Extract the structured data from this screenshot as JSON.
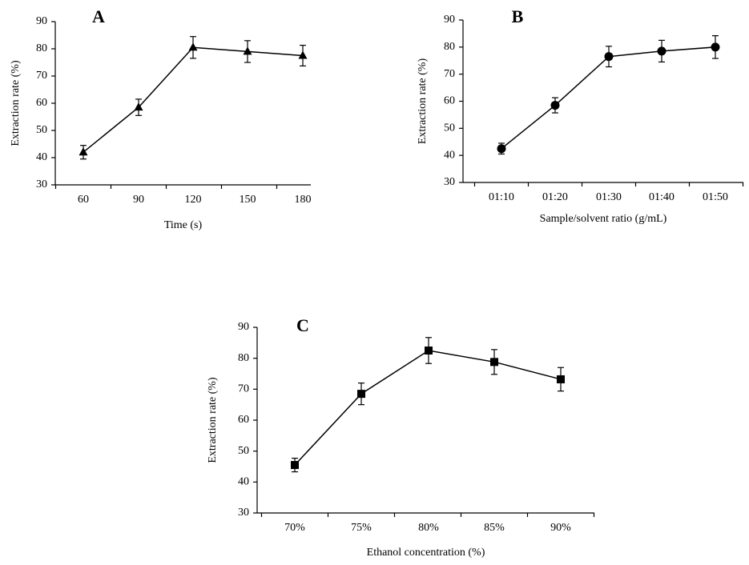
{
  "chart_data": [
    {
      "type": "line",
      "panel": "A",
      "title": "",
      "xlabel": "Time (s)",
      "ylabel": "Extraction rate (%)",
      "ylim": [
        30,
        90
      ],
      "yticks": [
        30,
        40,
        50,
        60,
        70,
        80,
        90
      ],
      "categories": [
        "60",
        "90",
        "120",
        "150",
        "180"
      ],
      "marker": "triangle",
      "grid": false,
      "series": [
        {
          "name": "Extraction rate",
          "values": [
            42.0,
            58.5,
            80.5,
            79.0,
            77.5
          ],
          "errors": [
            2.5,
            3.0,
            4.0,
            4.0,
            3.8
          ]
        }
      ]
    },
    {
      "type": "line",
      "panel": "B",
      "title": "",
      "xlabel": "Sample/solvent ratio (g/mL)",
      "ylabel": "Extraction rate (%)",
      "ylim": [
        30,
        90
      ],
      "yticks": [
        30,
        40,
        50,
        60,
        70,
        80,
        90
      ],
      "categories": [
        "01:10",
        "01:20",
        "01:30",
        "01:40",
        "01:50"
      ],
      "marker": "circle",
      "grid": false,
      "series": [
        {
          "name": "Extraction rate",
          "values": [
            42.5,
            58.5,
            76.5,
            78.5,
            80.0
          ],
          "errors": [
            2.0,
            2.8,
            3.8,
            4.0,
            4.2
          ]
        }
      ]
    },
    {
      "type": "line",
      "panel": "C",
      "title": "",
      "xlabel": "Ethanol concentration (%)",
      "ylabel": "Extraction rate (%)",
      "ylim": [
        30,
        90
      ],
      "yticks": [
        30,
        40,
        50,
        60,
        70,
        80,
        90
      ],
      "categories": [
        "70%",
        "75%",
        "80%",
        "85%",
        "90%"
      ],
      "marker": "square",
      "grid": false,
      "series": [
        {
          "name": "Extraction rate",
          "values": [
            45.5,
            68.5,
            82.5,
            78.8,
            73.2
          ],
          "errors": [
            2.2,
            3.5,
            4.2,
            4.0,
            3.8
          ]
        }
      ]
    }
  ]
}
